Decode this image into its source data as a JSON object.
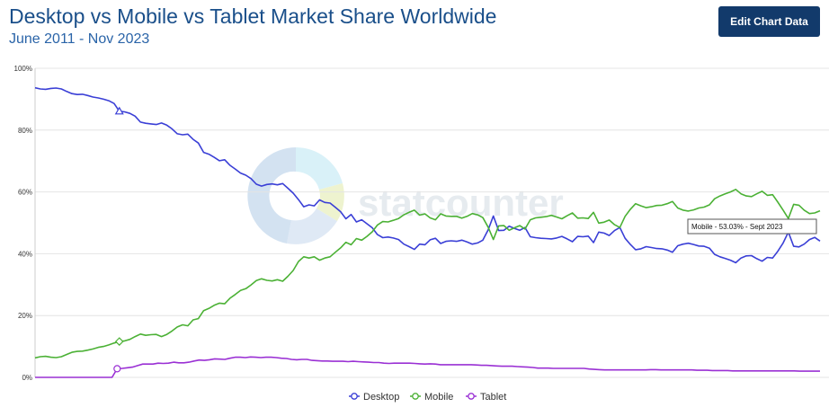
{
  "header": {
    "title": "Desktop vs Mobile vs Tablet Market Share Worldwide",
    "subtitle": "June 2011 - Nov 2023",
    "edit_button_label": "Edit Chart Data"
  },
  "watermark": "statcounter",
  "tooltip": {
    "text": "Mobile - 53.03% - Sept 2023"
  },
  "chart_data": {
    "type": "line",
    "title": "Desktop vs Mobile vs Tablet Market Share Worldwide",
    "subtitle": "June 2011 - Nov 2023",
    "x_range": [
      "June 2011",
      "Nov 2023"
    ],
    "ylim": [
      0,
      100
    ],
    "y_ticks": [
      0,
      20,
      40,
      60,
      80,
      100
    ],
    "y_tick_labels": [
      "0%",
      "20%",
      "40%",
      "60%",
      "80%",
      "100%"
    ],
    "grid": true,
    "legend_position": "bottom-center",
    "series": [
      {
        "name": "Desktop",
        "color": "#3a3fd6",
        "values": [
          93.7,
          93.3,
          93.2,
          93.5,
          93.6,
          93.3,
          92.5,
          91.8,
          91.5,
          91.6,
          91.2,
          90.7,
          90.4,
          90.0,
          89.5,
          88.6,
          86.1,
          85.9,
          85.4,
          84.5,
          82.6,
          82.2,
          82.0,
          81.8,
          82.3,
          81.6,
          80.4,
          78.8,
          78.5,
          78.7,
          77.0,
          75.8,
          72.8,
          72.2,
          71.2,
          70.1,
          70.4,
          68.6,
          67.4,
          66.1,
          65.4,
          64.3,
          62.5,
          61.9,
          62.4,
          62.6,
          62.3,
          62.7,
          61.2,
          59.6,
          57.5,
          55.2,
          55.8,
          55.5,
          57.4,
          56.6,
          56.4,
          55.0,
          53.6,
          51.3,
          52.7,
          50.3,
          51.0,
          49.7,
          48.4,
          46.2,
          45.2,
          45.4,
          45.1,
          44.6,
          43.1,
          42.3,
          41.4,
          43.1,
          42.9,
          44.5,
          45.0,
          43.3,
          44.0,
          44.2,
          44.0,
          44.4,
          43.8,
          43.1,
          43.5,
          44.4,
          47.7,
          52.2,
          47.5,
          47.6,
          48.9,
          48.2,
          47.6,
          48.5,
          45.5,
          45.2,
          45.0,
          44.9,
          44.8,
          45.1,
          45.6,
          44.8,
          43.9,
          45.6,
          45.5,
          45.7,
          43.6,
          47.0,
          46.7,
          45.9,
          47.5,
          48.5,
          45.0,
          43.0,
          41.3,
          41.6,
          42.3,
          42.0,
          41.7,
          41.6,
          41.2,
          40.5,
          42.6,
          43.1,
          43.4,
          43.0,
          42.5,
          42.4,
          41.8,
          39.8,
          39.0,
          38.5,
          37.9,
          37.1,
          38.6,
          39.3,
          39.4,
          38.4,
          37.6,
          38.8,
          38.6,
          40.8,
          43.5,
          47.0,
          42.4,
          42.2,
          43.1,
          44.6,
          45.3,
          44.1
        ]
      },
      {
        "name": "Mobile",
        "color": "#4bb135",
        "values": [
          6.3,
          6.7,
          6.8,
          6.5,
          6.4,
          6.7,
          7.4,
          8.1,
          8.4,
          8.5,
          8.8,
          9.2,
          9.7,
          10.0,
          10.5,
          11.1,
          11.6,
          11.8,
          12.3,
          13.2,
          14.0,
          13.6,
          13.8,
          13.9,
          13.2,
          13.9,
          15.0,
          16.3,
          17.0,
          16.7,
          18.6,
          19.0,
          21.6,
          22.3,
          23.3,
          24.0,
          23.8,
          25.6,
          26.8,
          28.1,
          28.7,
          29.9,
          31.3,
          31.9,
          31.4,
          31.2,
          31.6,
          31.1,
          32.7,
          34.6,
          37.5,
          39.0,
          38.6,
          39.0,
          37.9,
          38.6,
          39.0,
          40.5,
          41.9,
          43.7,
          42.9,
          44.9,
          44.4,
          45.6,
          47.1,
          49.3,
          50.4,
          50.3,
          50.8,
          51.4,
          52.6,
          53.4,
          54.1,
          52.5,
          52.9,
          51.6,
          51.0,
          52.9,
          52.2,
          52.1,
          52.1,
          51.5,
          52.1,
          53.0,
          52.6,
          51.7,
          48.6,
          44.6,
          49.0,
          49.1,
          47.6,
          48.4,
          49.1,
          48.0,
          51.0,
          51.6,
          51.8,
          52.0,
          52.4,
          51.9,
          51.3,
          52.3,
          53.2,
          51.5,
          51.6,
          51.4,
          53.4,
          49.9,
          50.2,
          50.9,
          49.4,
          48.5,
          52.1,
          54.4,
          56.2,
          55.5,
          54.9,
          55.2,
          55.6,
          55.7,
          56.2,
          56.9,
          54.8,
          54.1,
          53.8,
          54.2,
          54.8,
          55.1,
          55.8,
          57.8,
          58.7,
          59.4,
          60.0,
          60.8,
          59.4,
          58.7,
          58.5,
          59.4,
          60.2,
          58.9,
          59.1,
          56.7,
          54.1,
          51.4,
          56.0,
          55.7,
          54.1,
          53.0,
          53.2,
          53.9
        ]
      },
      {
        "name": "Tablet",
        "color": "#9a30d4",
        "values": [
          0,
          0,
          0,
          0,
          0,
          0,
          0,
          0,
          0,
          0,
          0,
          0,
          0,
          0,
          0,
          0,
          2.8,
          2.9,
          3.1,
          3.3,
          3.8,
          4.3,
          4.3,
          4.3,
          4.6,
          4.5,
          4.6,
          4.9,
          4.7,
          4.7,
          4.9,
          5.3,
          5.6,
          5.5,
          5.7,
          6.0,
          5.9,
          5.8,
          6.2,
          6.5,
          6.5,
          6.4,
          6.6,
          6.5,
          6.4,
          6.5,
          6.5,
          6.4,
          6.2,
          6.1,
          5.8,
          5.7,
          5.8,
          5.8,
          5.5,
          5.4,
          5.3,
          5.3,
          5.2,
          5.2,
          5.2,
          5.1,
          5.2,
          5.1,
          5.0,
          4.9,
          4.8,
          4.8,
          4.6,
          4.5,
          4.6,
          4.6,
          4.6,
          4.6,
          4.5,
          4.4,
          4.3,
          4.4,
          4.3,
          4.1,
          4.1,
          4.1,
          4.1,
          4.1,
          4.1,
          4.1,
          4.0,
          3.9,
          3.9,
          3.8,
          3.7,
          3.6,
          3.6,
          3.6,
          3.5,
          3.4,
          3.3,
          3.2,
          3.0,
          3.0,
          3.0,
          2.9,
          2.9,
          2.9,
          2.9,
          2.9,
          2.9,
          2.9,
          2.7,
          2.6,
          2.5,
          2.4,
          2.4,
          2.4,
          2.4,
          2.4,
          2.4,
          2.4,
          2.4,
          2.4,
          2.5,
          2.5,
          2.4,
          2.4,
          2.4,
          2.4,
          2.4,
          2.4,
          2.4,
          2.3,
          2.3,
          2.3,
          2.2,
          2.2,
          2.2,
          2.2,
          2.1,
          2.1,
          2.1,
          2.1,
          2.1,
          2.1,
          2.1,
          2.1,
          2.1,
          2.1,
          2.1,
          2.1,
          2.1,
          2.0,
          2.0,
          2.0,
          2.0,
          2.0
        ]
      }
    ]
  }
}
